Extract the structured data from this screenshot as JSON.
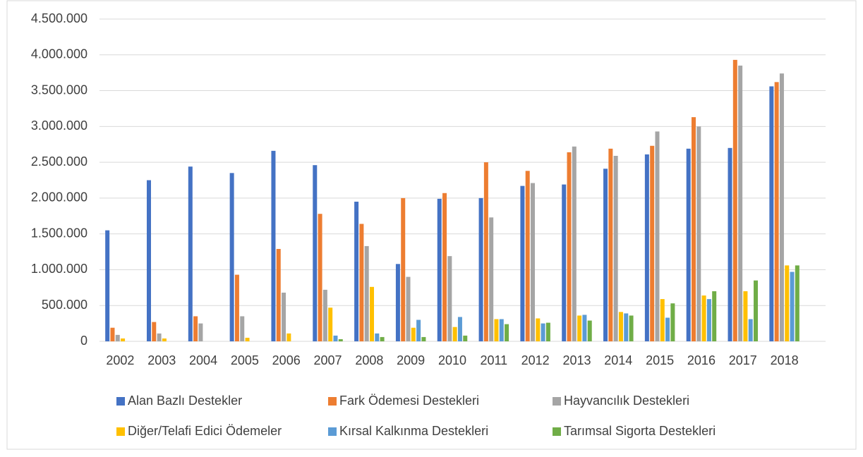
{
  "chart_data": {
    "type": "bar",
    "categories": [
      "2002",
      "2003",
      "2004",
      "2005",
      "2006",
      "2007",
      "2008",
      "2009",
      "2010",
      "2011",
      "2012",
      "2013",
      "2014",
      "2015",
      "2016",
      "2017",
      "2018"
    ],
    "series": [
      {
        "name": "Alan Bazlı Destekler",
        "color": "#4472c4",
        "values": [
          1550000,
          2250000,
          2440000,
          2350000,
          2660000,
          2460000,
          1950000,
          1080000,
          1990000,
          2000000,
          2170000,
          2190000,
          2410000,
          2610000,
          2690000,
          2700000,
          3560000
        ]
      },
      {
        "name": "Fark Ödemesi Destekleri",
        "color": "#ed7d31",
        "values": [
          190000,
          270000,
          350000,
          930000,
          1290000,
          1780000,
          1640000,
          2000000,
          2070000,
          2500000,
          2380000,
          2640000,
          2690000,
          2730000,
          3130000,
          3930000,
          3620000
        ]
      },
      {
        "name": "Hayvancılık Destekleri",
        "color": "#a5a5a5",
        "values": [
          90000,
          110000,
          250000,
          350000,
          680000,
          720000,
          1330000,
          900000,
          1190000,
          1730000,
          2210000,
          2720000,
          2590000,
          2930000,
          3000000,
          3850000,
          3740000
        ]
      },
      {
        "name": "Diğer/Telafi Edici Ödemeler",
        "color": "#ffc000",
        "values": [
          40000,
          40000,
          0,
          50000,
          110000,
          470000,
          760000,
          190000,
          200000,
          310000,
          320000,
          360000,
          410000,
          590000,
          640000,
          700000,
          1060000
        ]
      },
      {
        "name": "Kırsal Kalkınma Destekleri",
        "color": "#5b9bd5",
        "values": [
          0,
          0,
          0,
          0,
          0,
          80000,
          110000,
          300000,
          340000,
          310000,
          250000,
          370000,
          390000,
          330000,
          590000,
          310000,
          970000
        ]
      },
      {
        "name": "Tarımsal Sigorta Destekleri",
        "color": "#70ad47",
        "values": [
          0,
          0,
          0,
          0,
          0,
          30000,
          60000,
          60000,
          80000,
          240000,
          260000,
          290000,
          360000,
          530000,
          700000,
          850000,
          1060000
        ]
      }
    ],
    "ylim": [
      0,
      4500000
    ],
    "yticks": [
      0,
      {
        "value": 500000,
        "label": "500.000"
      },
      {
        "value": 1000000,
        "label": "1.000.000"
      },
      {
        "value": 1500000,
        "label": "1.500.000"
      },
      {
        "value": 2000000,
        "label": "2.000.000"
      },
      {
        "value": 2500000,
        "label": "2.500.000"
      },
      {
        "value": 3000000,
        "label": "3.000.000"
      },
      {
        "value": 3500000,
        "label": "3.500.000"
      },
      {
        "value": 4000000,
        "label": "4.000.000"
      },
      {
        "value": 4500000,
        "label": "4.500.000"
      }
    ],
    "grid": true
  }
}
